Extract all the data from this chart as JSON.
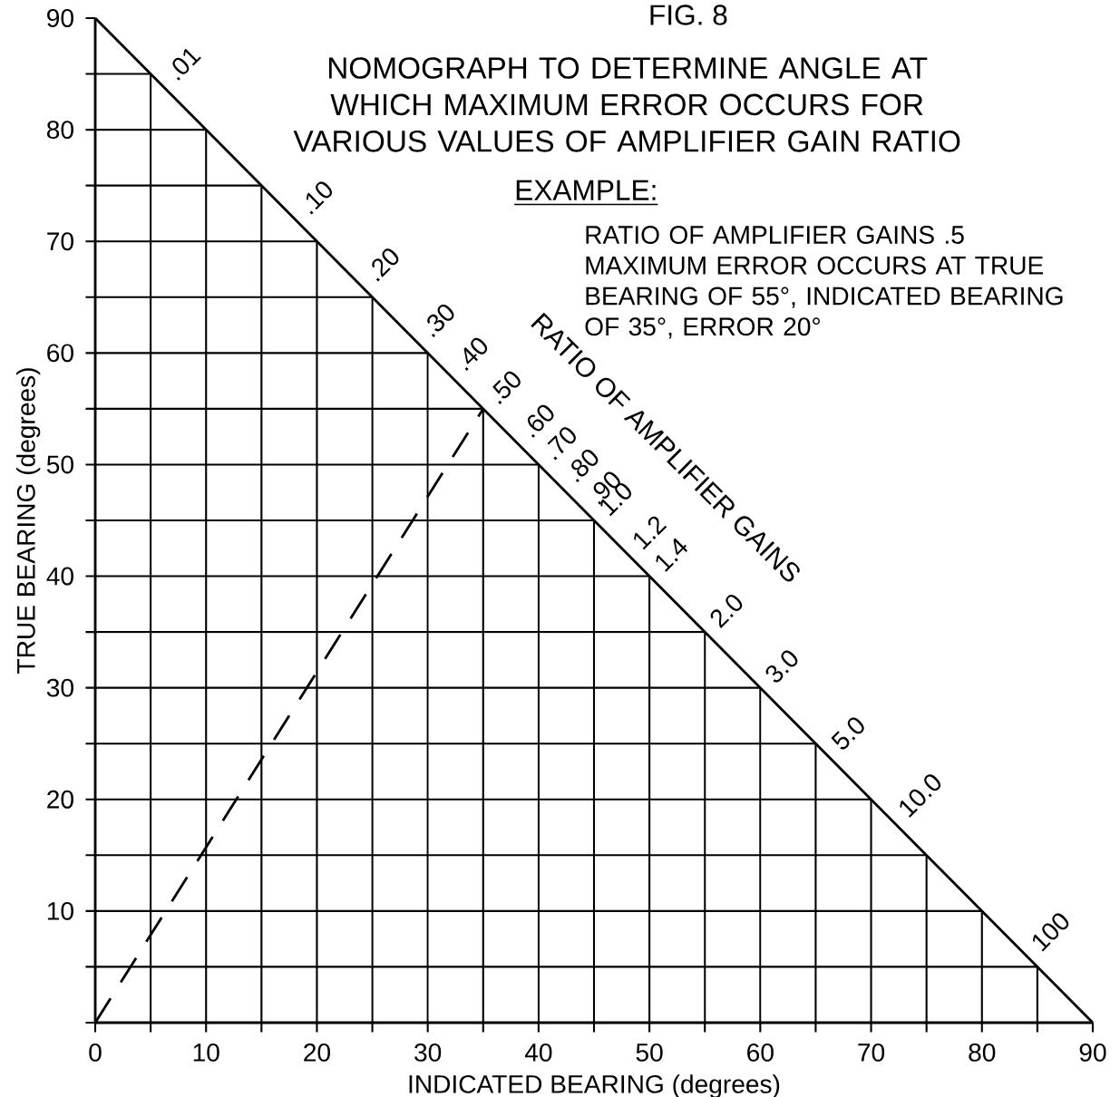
{
  "chart_data": {
    "type": "line",
    "title": "FIG. 8",
    "subtitle": "NOMOGRAPH TO DETERMINE ANGLE AT WHICH MAXIMUM ERROR OCCURS FOR VARIOUS VALUES OF AMPLIFIER GAIN RATIO",
    "xlabel": "INDICATED BEARING (degrees)",
    "ylabel": "TRUE BEARING (degrees)",
    "xlim": [
      0,
      90
    ],
    "ylim": [
      0,
      90
    ],
    "xticks": [
      0,
      {
        "value": 5,
        "label": null
      },
      10,
      {
        "value": 15,
        "label": null
      },
      20,
      {
        "value": 25,
        "label": null
      },
      30,
      {
        "value": 35,
        "label": null
      },
      40,
      {
        "value": 45,
        "label": null
      },
      50,
      {
        "value": 55,
        "label": null
      },
      60,
      {
        "value": 65,
        "label": null
      },
      70,
      {
        "value": 75,
        "label": null
      },
      80,
      {
        "value": 85,
        "label": null
      },
      90
    ],
    "yticks": [
      {
        "value": 0,
        "label": null
      },
      {
        "value": 5,
        "label": null
      },
      10,
      {
        "value": 15,
        "label": null
      },
      20,
      {
        "value": 25,
        "label": null
      },
      30,
      {
        "value": 35,
        "label": null
      },
      40,
      {
        "value": 45,
        "label": null
      },
      50,
      {
        "value": 55,
        "label": null
      },
      60,
      {
        "value": 65,
        "label": null
      },
      70,
      {
        "value": 75,
        "label": null
      },
      80,
      {
        "value": 85,
        "label": null
      },
      90
    ],
    "grid": true,
    "series": [
      {
        "color": "#000000",
        "x": [
          0,
          90
        ],
        "values": [
          90,
          0
        ],
        "line_style": "solid"
      },
      {
        "color": "#000000",
        "x": [
          0,
          35
        ],
        "values": [
          0,
          55
        ],
        "line_style": "dashed"
      }
    ],
    "annotations": [
      {
        "text": ".01",
        "x": 6,
        "y": 84
      },
      {
        "text": ".10",
        "x": 18,
        "y": 72
      },
      {
        "text": ".20",
        "x": 24,
        "y": 66
      },
      {
        "text": ".30",
        "x": 29,
        "y": 61
      },
      {
        "text": ".40",
        "x": 32,
        "y": 58
      },
      {
        "text": ".50",
        "x": 35,
        "y": 55
      },
      {
        "text": ".60",
        "x": 38,
        "y": 52
      },
      {
        "text": ".70",
        "x": 40,
        "y": 50
      },
      {
        "text": ".80",
        "x": 42,
        "y": 48
      },
      {
        "text": ".90",
        "x": 44,
        "y": 46
      },
      {
        "text": "1.0",
        "x": 45,
        "y": 45
      },
      {
        "text": "1.2",
        "x": 48,
        "y": 42
      },
      {
        "text": "1.4",
        "x": 50,
        "y": 40
      },
      {
        "text": "2.0",
        "x": 55,
        "y": 35
      },
      {
        "text": "3.0",
        "x": 60,
        "y": 30
      },
      {
        "text": "5.0",
        "x": 66,
        "y": 24
      },
      {
        "text": "10.0",
        "x": 72,
        "y": 18
      },
      {
        "text": "100",
        "x": 84,
        "y": 6
      },
      "RATIO OF AMPLIFIER GAINS",
      "EXAMPLE:",
      "RATIO OF AMPLIFIER GAINS .5 MAXIMUM ERROR OCCURS AT TRUE BEARING OF 55°, INDICATED BEARING OF 35°, ERROR 20°"
    ]
  }
}
